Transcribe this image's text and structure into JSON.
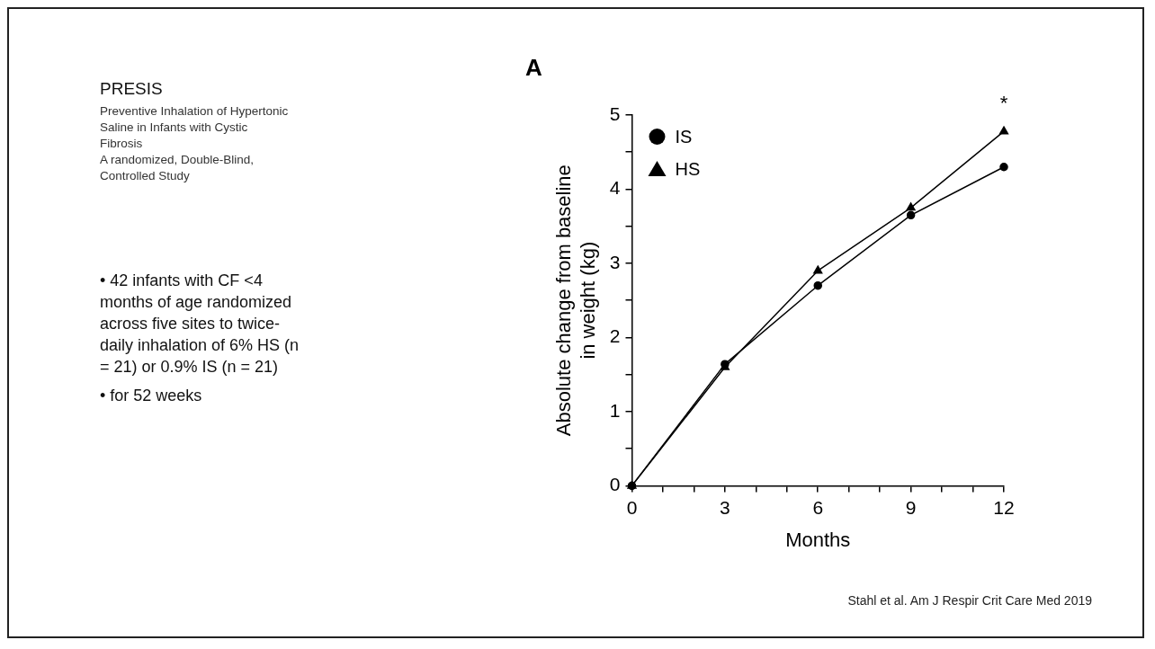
{
  "chart_data": {
    "type": "line",
    "title": "PRESIS",
    "subtitle": "Preventive Inhalation of Hypertonic Saline in Infants with Cystic Fibrosis\nA randomized, Double-Blind, Controlled Study",
    "xlabel": "Months",
    "ylabel": "Absolute change from baseline\nin weight (kg)",
    "x": [
      0,
      3,
      6,
      9,
      12
    ],
    "series": [
      {
        "name": "IS",
        "color": "#000000",
        "marker": "circle",
        "values": [
          0,
          1.64,
          2.7,
          3.65,
          4.3
        ]
      },
      {
        "name": "HS",
        "color": "#000000",
        "marker": "triangle",
        "values": [
          0,
          1.6,
          2.9,
          3.75,
          4.78
        ]
      }
    ],
    "xlim": [
      0,
      12
    ],
    "xticks": [
      0,
      {
        "value": 1,
        "label": null
      },
      {
        "value": 2,
        "label": null
      },
      3,
      {
        "value": 4,
        "label": null
      },
      {
        "value": 5,
        "label": null
      },
      6,
      {
        "value": 7,
        "label": null
      },
      {
        "value": 8,
        "label": null
      },
      9,
      {
        "value": 10,
        "label": null
      },
      {
        "value": 11,
        "label": null
      },
      12
    ],
    "ylim": [
      0,
      5
    ],
    "yticks": [
      0,
      {
        "value": 0.5,
        "label": null
      },
      1,
      {
        "value": 1.5,
        "label": null
      },
      2,
      {
        "value": 2.5,
        "label": null
      },
      3,
      {
        "value": 3.5,
        "label": null
      },
      4,
      {
        "value": 4.5,
        "label": null
      },
      5
    ],
    "grid": false,
    "legend": "top left",
    "line_style": "solid",
    "annotations": [
      "A",
      "*",
      "• 42 infants with CF <4 months of age randomized across five sites to twice-daily inhalation of 6% HS (n = 21) or 0.9% IS (n = 21)",
      "• for 52 weeks",
      "Stahl et al. Am J Respir Crit Care Med 2019"
    ]
  }
}
